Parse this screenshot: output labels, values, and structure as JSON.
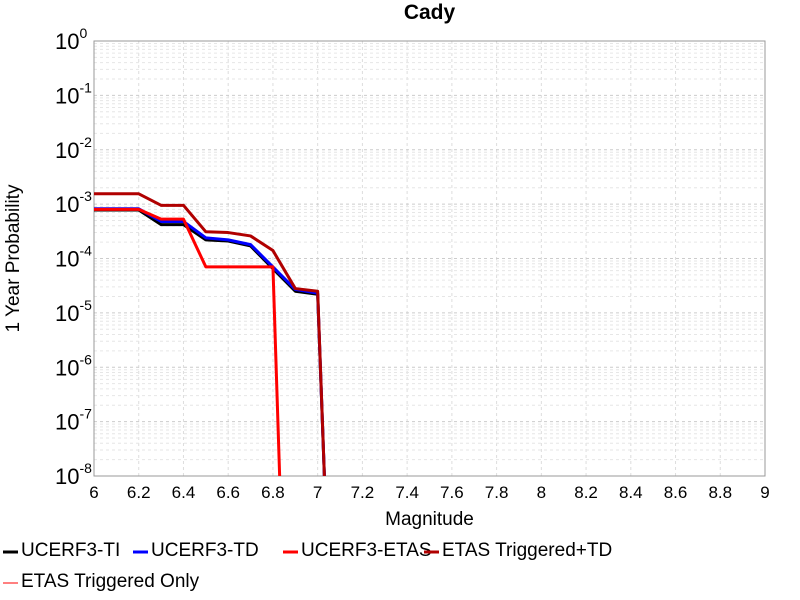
{
  "chart_data": {
    "type": "line",
    "title": "Cady",
    "xlabel": "Magnitude",
    "ylabel": "1 Year Probability",
    "xlim": [
      6,
      9
    ],
    "ylim": [
      1e-08,
      1
    ],
    "yscale": "log",
    "grid": true,
    "legend_position": "bottom",
    "x_ticks": [
      "6",
      "6.2",
      "6.4",
      "6.6",
      "6.8",
      "7",
      "7.2",
      "7.4",
      "7.6",
      "7.8",
      "8",
      "8.2",
      "8.4",
      "8.6",
      "8.8",
      "9"
    ],
    "y_ticks": [
      {
        "base": "10",
        "exp": "0"
      },
      {
        "base": "10",
        "exp": "-1"
      },
      {
        "base": "10",
        "exp": "-2"
      },
      {
        "base": "10",
        "exp": "-3"
      },
      {
        "base": "10",
        "exp": "-4"
      },
      {
        "base": "10",
        "exp": "-5"
      },
      {
        "base": "10",
        "exp": "-6"
      },
      {
        "base": "10",
        "exp": "-7"
      },
      {
        "base": "10",
        "exp": "-8"
      }
    ],
    "series": [
      {
        "name": "UCERF3-TI",
        "color": "#000000",
        "x": [
          6.0,
          6.2,
          6.3,
          6.4,
          6.5,
          6.6,
          6.7,
          6.8,
          6.9,
          7.0,
          7.03
        ],
        "y": [
          0.00078,
          0.00078,
          0.00042,
          0.00042,
          0.00022,
          0.00021,
          0.00017,
          6.5e-05,
          2.5e-05,
          2.2e-05,
          1e-08
        ]
      },
      {
        "name": "UCERF3-TD",
        "color": "#0000ff",
        "x": [
          6.0,
          6.2,
          6.3,
          6.4,
          6.5,
          6.6,
          6.7,
          6.8,
          6.9,
          7.0,
          7.03
        ],
        "y": [
          0.00082,
          0.00082,
          0.00048,
          0.00048,
          0.00024,
          0.00022,
          0.00018,
          7e-05,
          2.7e-05,
          2.3e-05,
          1e-08
        ]
      },
      {
        "name": "UCERF3-ETAS",
        "color": "#ff0000",
        "x": [
          6.0,
          6.2,
          6.3,
          6.4,
          6.5,
          6.6,
          6.7,
          6.8,
          6.83
        ],
        "y": [
          0.0008,
          0.0008,
          0.00053,
          0.00053,
          7e-05,
          7e-05,
          7e-05,
          7e-05,
          1e-08
        ]
      },
      {
        "name": "ETAS Triggered+TD",
        "color": "#b00000",
        "x": [
          6.0,
          6.2,
          6.3,
          6.4,
          6.5,
          6.6,
          6.7,
          6.8,
          6.9,
          7.0,
          7.03
        ],
        "y": [
          0.00155,
          0.00155,
          0.00095,
          0.00095,
          0.00031,
          0.0003,
          0.00026,
          0.00014,
          2.8e-05,
          2.5e-05,
          1e-08
        ]
      },
      {
        "name": "ETAS Triggered Only",
        "color": "#ff8080",
        "x": [],
        "y": []
      }
    ]
  }
}
